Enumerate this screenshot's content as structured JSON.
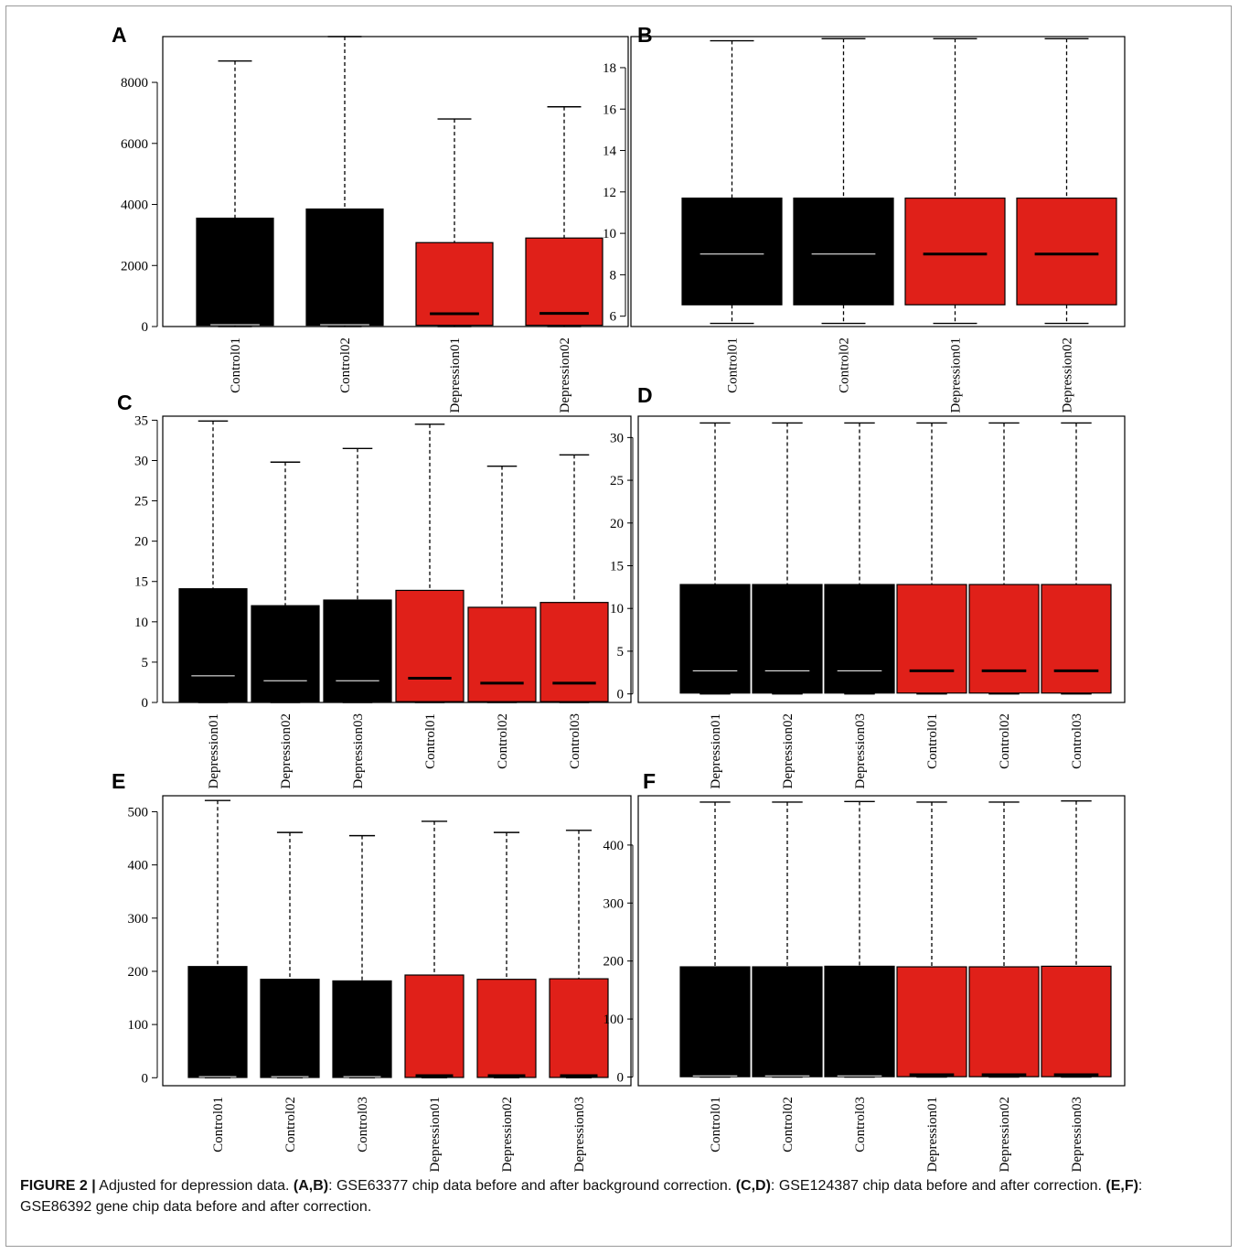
{
  "caption": {
    "figure_label": "FIGURE 2 |",
    "segments": [
      {
        "text": " Adjusted for depression data. ",
        "bold": false
      },
      {
        "text": "(A,B)",
        "bold": true
      },
      {
        "text": ": GSE63377 chip data before and after background correction. ",
        "bold": false
      },
      {
        "text": "(C,D)",
        "bold": true
      },
      {
        "text": ": GSE124387 chip data before and after correction. ",
        "bold": false
      },
      {
        "text": "(E,F)",
        "bold": true
      },
      {
        "text": ": GSE86392 gene chip data before and after correction.",
        "bold": false
      }
    ]
  },
  "colors": {
    "control": "#000000",
    "depression": "#e02019",
    "median_on_black": "#ffffff",
    "median_on_red": "#000000"
  },
  "chart_data": [
    {
      "panel": "A",
      "type": "boxplot",
      "ylim": [
        0,
        9500
      ],
      "yticks": [
        0,
        2000,
        4000,
        6000,
        8000
      ],
      "categories": [
        "Control01",
        "Control02",
        "Depression01",
        "Depression02"
      ],
      "groups": [
        "control",
        "control",
        "depression",
        "depression"
      ],
      "boxes": [
        {
          "min": 0,
          "q1": 40,
          "median": 60,
          "q3": 3550,
          "max": 8700
        },
        {
          "min": 0,
          "q1": 40,
          "median": 60,
          "q3": 3850,
          "max": 9500
        },
        {
          "min": 0,
          "q1": 40,
          "median": 420,
          "q3": 2750,
          "max": 6800
        },
        {
          "min": 0,
          "q1": 40,
          "median": 430,
          "q3": 2900,
          "max": 7200
        }
      ]
    },
    {
      "panel": "B",
      "type": "boxplot",
      "ylim": [
        5.5,
        19.5
      ],
      "yticks": [
        6,
        8,
        10,
        12,
        14,
        16,
        18
      ],
      "categories": [
        "Control01",
        "Control02",
        "Depression01",
        "Depression02"
      ],
      "groups": [
        "control",
        "control",
        "depression",
        "depression"
      ],
      "boxes": [
        {
          "min": 5.65,
          "q1": 6.55,
          "median": 9.0,
          "q3": 11.7,
          "max": 19.3
        },
        {
          "min": 5.65,
          "q1": 6.55,
          "median": 9.0,
          "q3": 11.7,
          "max": 19.4
        },
        {
          "min": 5.65,
          "q1": 6.55,
          "median": 9.0,
          "q3": 11.7,
          "max": 19.4
        },
        {
          "min": 5.65,
          "q1": 6.55,
          "median": 9.0,
          "q3": 11.7,
          "max": 19.4
        }
      ]
    },
    {
      "panel": "C",
      "type": "boxplot",
      "ylim": [
        0,
        35.5
      ],
      "yticks": [
        0,
        5,
        10,
        15,
        20,
        25,
        30,
        35
      ],
      "categories": [
        "Depression01",
        "Depression02",
        "Depression03",
        "Control01",
        "Control02",
        "Control03"
      ],
      "groups": [
        "control",
        "control",
        "control",
        "depression",
        "depression",
        "depression"
      ],
      "boxes": [
        {
          "min": 0,
          "q1": 0.1,
          "median": 3.3,
          "q3": 14.1,
          "max": 34.9
        },
        {
          "min": 0,
          "q1": 0.1,
          "median": 2.7,
          "q3": 12.0,
          "max": 29.8
        },
        {
          "min": 0,
          "q1": 0.1,
          "median": 2.7,
          "q3": 12.7,
          "max": 31.5
        },
        {
          "min": 0,
          "q1": 0.1,
          "median": 3.0,
          "q3": 13.9,
          "max": 34.5
        },
        {
          "min": 0,
          "q1": 0.1,
          "median": 2.4,
          "q3": 11.8,
          "max": 29.3
        },
        {
          "min": 0,
          "q1": 0.1,
          "median": 2.4,
          "q3": 12.4,
          "max": 30.7
        }
      ]
    },
    {
      "panel": "D",
      "type": "boxplot",
      "ylim": [
        -1,
        32.5
      ],
      "yticks": [
        0,
        5,
        10,
        15,
        20,
        25,
        30
      ],
      "categories": [
        "Depression01",
        "Depression02",
        "Depression03",
        "Control01",
        "Control02",
        "Control03"
      ],
      "groups": [
        "control",
        "control",
        "control",
        "depression",
        "depression",
        "depression"
      ],
      "boxes": [
        {
          "min": 0,
          "q1": 0.1,
          "median": 2.7,
          "q3": 12.8,
          "max": 31.7
        },
        {
          "min": 0,
          "q1": 0.1,
          "median": 2.7,
          "q3": 12.8,
          "max": 31.7
        },
        {
          "min": 0,
          "q1": 0.1,
          "median": 2.7,
          "q3": 12.8,
          "max": 31.7
        },
        {
          "min": 0,
          "q1": 0.1,
          "median": 2.7,
          "q3": 12.8,
          "max": 31.7
        },
        {
          "min": 0,
          "q1": 0.1,
          "median": 2.7,
          "q3": 12.8,
          "max": 31.7
        },
        {
          "min": 0,
          "q1": 0.1,
          "median": 2.7,
          "q3": 12.8,
          "max": 31.7
        }
      ]
    },
    {
      "panel": "E",
      "type": "boxplot",
      "ylim": [
        -15,
        530
      ],
      "yticks": [
        0,
        100,
        200,
        300,
        400,
        500
      ],
      "categories": [
        "Control01",
        "Control02",
        "Control03",
        "Depression01",
        "Depression02",
        "Depression03"
      ],
      "groups": [
        "control",
        "control",
        "control",
        "depression",
        "depression",
        "depression"
      ],
      "boxes": [
        {
          "min": 0,
          "q1": 0.5,
          "median": 2,
          "q3": 209,
          "max": 521
        },
        {
          "min": 0,
          "q1": 0.5,
          "median": 2,
          "q3": 185,
          "max": 461
        },
        {
          "min": 0,
          "q1": 0.5,
          "median": 2,
          "q3": 182,
          "max": 455
        },
        {
          "min": 0,
          "q1": 0.5,
          "median": 4,
          "q3": 193,
          "max": 482
        },
        {
          "min": 0,
          "q1": 0.5,
          "median": 4,
          "q3": 185,
          "max": 461
        },
        {
          "min": 0,
          "q1": 0.5,
          "median": 4,
          "q3": 186,
          "max": 465
        }
      ]
    },
    {
      "panel": "F",
      "type": "boxplot",
      "ylim": [
        -15,
        485
      ],
      "yticks": [
        0,
        100,
        200,
        300,
        400
      ],
      "categories": [
        "Control01",
        "Control02",
        "Control03",
        "Depression01",
        "Depression02",
        "Depression03"
      ],
      "groups": [
        "control",
        "control",
        "control",
        "depression",
        "depression",
        "depression"
      ],
      "boxes": [
        {
          "min": 0,
          "q1": 0.5,
          "median": 2,
          "q3": 190,
          "max": 474
        },
        {
          "min": 0,
          "q1": 0.5,
          "median": 2,
          "q3": 190,
          "max": 474
        },
        {
          "min": 0,
          "q1": 0.5,
          "median": 2,
          "q3": 191,
          "max": 475
        },
        {
          "min": 0,
          "q1": 0.5,
          "median": 4,
          "q3": 190,
          "max": 474
        },
        {
          "min": 0,
          "q1": 0.5,
          "median": 4,
          "q3": 190,
          "max": 474
        },
        {
          "min": 0,
          "q1": 0.5,
          "median": 4,
          "q3": 191,
          "max": 476
        }
      ]
    }
  ]
}
